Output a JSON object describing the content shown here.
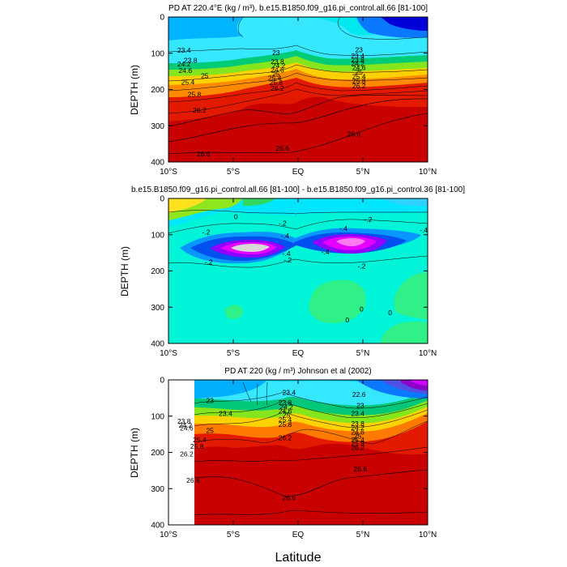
{
  "figure": {
    "xlabel": "Latitude"
  },
  "chart_data": [
    {
      "type": "heatmap",
      "title": "PD AT 220.4°E (kg / m³), b.e15.B1850.f09_g16.pi_control.all.66 [81-100]",
      "ylabel": "DEPTH (m)",
      "xlim": [
        -10,
        10
      ],
      "ylim": [
        0,
        400
      ],
      "xticks": [
        -10,
        -5,
        0,
        5,
        10
      ],
      "xtick_labels": [
        "10°S",
        "5°S",
        "EQ",
        "5°N",
        "10°N"
      ],
      "yticks": [
        0,
        100,
        200,
        300,
        400
      ],
      "ytick_labels": [
        "0",
        "100",
        "200",
        "300",
        "400"
      ],
      "contour_labels": [
        {
          "text": "23.4",
          "x": -8.8,
          "y": 92
        },
        {
          "text": "23.8",
          "x": -8.3,
          "y": 120
        },
        {
          "text": "24.2",
          "x": -8.8,
          "y": 130
        },
        {
          "text": "24.6",
          "x": -8.7,
          "y": 147
        },
        {
          "text": "25",
          "x": -7.2,
          "y": 162
        },
        {
          "text": "25.4",
          "x": -8.5,
          "y": 180
        },
        {
          "text": "25.8",
          "x": -8.0,
          "y": 213
        },
        {
          "text": "26.2",
          "x": -7.6,
          "y": 257
        },
        {
          "text": "26.6",
          "x": -7.3,
          "y": 378
        },
        {
          "text": "23",
          "x": -1.7,
          "y": 98
        },
        {
          "text": "23.8",
          "x": -1.6,
          "y": 123
        },
        {
          "text": "24.2",
          "x": -1.5,
          "y": 134
        },
        {
          "text": "24.6",
          "x": -1.6,
          "y": 146
        },
        {
          "text": "25",
          "x": -1.7,
          "y": 158
        },
        {
          "text": "25.4",
          "x": -1.8,
          "y": 169
        },
        {
          "text": "25.8",
          "x": -1.7,
          "y": 181
        },
        {
          "text": "26.2",
          "x": -1.6,
          "y": 197
        },
        {
          "text": "26.6",
          "x": -1.2,
          "y": 362
        },
        {
          "text": "23",
          "x": 4.7,
          "y": 90
        },
        {
          "text": "23.4",
          "x": 4.6,
          "y": 107
        },
        {
          "text": "23.8",
          "x": 4.6,
          "y": 118
        },
        {
          "text": "24.2",
          "x": 4.6,
          "y": 129
        },
        {
          "text": "24.6",
          "x": 4.7,
          "y": 140
        },
        {
          "text": "25",
          "x": 4.7,
          "y": 152
        },
        {
          "text": "25.4",
          "x": 4.7,
          "y": 164
        },
        {
          "text": "25.8",
          "x": 4.7,
          "y": 176
        },
        {
          "text": "26.2",
          "x": 4.7,
          "y": 190
        },
        {
          "text": "26.6",
          "x": 4.3,
          "y": 323
        }
      ]
    },
    {
      "type": "heatmap",
      "title": "b.e15.B1850.f09_g16.pi_control.all.66 [81-100] - b.e15.B1850.f09_g16.pi_control.36 [81-100]",
      "ylabel": "DEPTH (m)",
      "xlim": [
        -10,
        10
      ],
      "ylim": [
        0,
        400
      ],
      "xticks": [
        -10,
        -5,
        0,
        5,
        10
      ],
      "xtick_labels": [
        "10°S",
        "5°S",
        "EQ",
        "5°N",
        "10°N"
      ],
      "yticks": [
        0,
        100,
        200,
        300,
        400
      ],
      "ytick_labels": [
        "0",
        "100",
        "200",
        "300",
        "400"
      ],
      "contour_labels": [
        {
          "text": "0",
          "x": -4.8,
          "y": 50
        },
        {
          "text": "-.2",
          "x": -1.2,
          "y": 68
        },
        {
          "text": "-.2",
          "x": 5.4,
          "y": 58
        },
        {
          "text": "-.2",
          "x": -7.1,
          "y": 93
        },
        {
          "text": "-.4",
          "x": -1.0,
          "y": 103
        },
        {
          "text": "-.4",
          "x": 3.5,
          "y": 83
        },
        {
          "text": "-.4",
          "x": 9.7,
          "y": 87
        },
        {
          "text": "-.2",
          "x": -6.9,
          "y": 175
        },
        {
          "text": "-.4",
          "x": -0.9,
          "y": 152
        },
        {
          "text": "-.2",
          "x": -0.8,
          "y": 170
        },
        {
          "text": "-.4",
          "x": 2.1,
          "y": 147
        },
        {
          "text": "-.2",
          "x": 4.9,
          "y": 187
        },
        {
          "text": "0",
          "x": 4.9,
          "y": 305
        },
        {
          "text": "0",
          "x": 7.1,
          "y": 315
        },
        {
          "text": "0",
          "x": 3.8,
          "y": 335
        }
      ]
    },
    {
      "type": "heatmap",
      "title": "PD AT 220 (kg / m³) Johnson et al (2002)",
      "ylabel": "DEPTH (m)",
      "xlim": [
        -10,
        10
      ],
      "ylim": [
        0,
        400
      ],
      "xticks": [
        -10,
        -5,
        0,
        5,
        10
      ],
      "xtick_labels": [
        "10°S",
        "5°S",
        "EQ",
        "5°N",
        "10°N"
      ],
      "yticks": [
        0,
        100,
        200,
        300,
        400
      ],
      "ytick_labels": [
        "0",
        "100",
        "200",
        "300",
        "400"
      ],
      "contour_labels": [
        {
          "text": "23",
          "x": -6.8,
          "y": 57
        },
        {
          "text": "23.4",
          "x": -5.6,
          "y": 93
        },
        {
          "text": "23.8",
          "x": -8.8,
          "y": 114
        },
        {
          "text": "24.2",
          "x": -8.7,
          "y": 125
        },
        {
          "text": "24.6",
          "x": -8.6,
          "y": 133
        },
        {
          "text": "25",
          "x": -6.8,
          "y": 140
        },
        {
          "text": "25.4",
          "x": -7.6,
          "y": 165
        },
        {
          "text": "25.8",
          "x": -7.8,
          "y": 183
        },
        {
          "text": "26.2",
          "x": -8.6,
          "y": 204
        },
        {
          "text": "26.6",
          "x": -8.1,
          "y": 277
        },
        {
          "text": "26.6",
          "x": -0.7,
          "y": 325
        },
        {
          "text": "26.6",
          "x": 4.8,
          "y": 246
        },
        {
          "text": "23.4",
          "x": -0.7,
          "y": 35
        },
        {
          "text": "23.8",
          "x": -1.0,
          "y": 63
        },
        {
          "text": "24.2",
          "x": -0.9,
          "y": 75
        },
        {
          "text": "24.6",
          "x": -1.0,
          "y": 86
        },
        {
          "text": "25",
          "x": -0.9,
          "y": 97
        },
        {
          "text": "25.4",
          "x": -1.0,
          "y": 110
        },
        {
          "text": "25.8",
          "x": -1.0,
          "y": 123
        },
        {
          "text": "26.2",
          "x": -1.0,
          "y": 160
        },
        {
          "text": "22.6",
          "x": 4.7,
          "y": 40
        },
        {
          "text": "23",
          "x": 4.8,
          "y": 70
        },
        {
          "text": "23.4",
          "x": 4.6,
          "y": 93
        },
        {
          "text": "23.8",
          "x": 4.6,
          "y": 121
        },
        {
          "text": "24.2",
          "x": 4.6,
          "y": 132
        },
        {
          "text": "24.6",
          "x": 4.6,
          "y": 144
        },
        {
          "text": "25",
          "x": 4.6,
          "y": 155
        },
        {
          "text": "25.4",
          "x": 4.6,
          "y": 165
        },
        {
          "text": "25.8",
          "x": 4.6,
          "y": 175
        },
        {
          "text": "26.2",
          "x": 4.6,
          "y": 187
        }
      ]
    }
  ]
}
